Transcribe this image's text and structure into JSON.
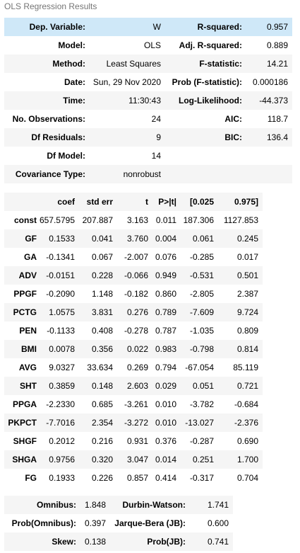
{
  "caption": "OLS Regression Results",
  "summary": [
    [
      "Dep. Variable:",
      "W",
      "R-squared:",
      "0.957"
    ],
    [
      "Model:",
      "OLS",
      "Adj. R-squared:",
      "0.889"
    ],
    [
      "Method:",
      "Least Squares",
      "F-statistic:",
      "14.21"
    ],
    [
      "Date:",
      "Sun, 29 Nov 2020",
      "Prob (F-statistic):",
      "0.000186"
    ],
    [
      "Time:",
      "11:30:43",
      "Log-Likelihood:",
      "-44.373"
    ],
    [
      "No. Observations:",
      "24",
      "AIC:",
      "118.7"
    ],
    [
      "Df Residuals:",
      "9",
      "BIC:",
      "136.4"
    ],
    [
      "Df Model:",
      "14",
      "",
      ""
    ],
    [
      "Covariance Type:",
      "nonrobust",
      "",
      ""
    ]
  ],
  "coef_headers": [
    "",
    "coef",
    "std err",
    "t",
    "P>|t|",
    "[0.025",
    "0.975]"
  ],
  "coef_rows": [
    [
      "const",
      "657.5795",
      "207.887",
      "3.163",
      "0.011",
      "187.306",
      "1127.853"
    ],
    [
      "GF",
      "0.1533",
      "0.041",
      "3.760",
      "0.004",
      "0.061",
      "0.245"
    ],
    [
      "GA",
      "-0.1341",
      "0.067",
      "-2.007",
      "0.076",
      "-0.285",
      "0.017"
    ],
    [
      "ADV",
      "-0.0151",
      "0.228",
      "-0.066",
      "0.949",
      "-0.531",
      "0.501"
    ],
    [
      "PPGF",
      "-0.2090",
      "1.148",
      "-0.182",
      "0.860",
      "-2.805",
      "2.387"
    ],
    [
      "PCTG",
      "1.0575",
      "3.831",
      "0.276",
      "0.789",
      "-7.609",
      "9.724"
    ],
    [
      "PEN",
      "-0.1133",
      "0.408",
      "-0.278",
      "0.787",
      "-1.035",
      "0.809"
    ],
    [
      "BMI",
      "0.0078",
      "0.356",
      "0.022",
      "0.983",
      "-0.798",
      "0.814"
    ],
    [
      "AVG",
      "9.0327",
      "33.634",
      "0.269",
      "0.794",
      "-67.054",
      "85.119"
    ],
    [
      "SHT",
      "0.3859",
      "0.148",
      "2.603",
      "0.029",
      "0.051",
      "0.721"
    ],
    [
      "PPGA",
      "-2.2330",
      "0.685",
      "-3.261",
      "0.010",
      "-3.782",
      "-0.684"
    ],
    [
      "PKPCT",
      "-7.7016",
      "2.354",
      "-3.272",
      "0.010",
      "-13.027",
      "-2.376"
    ],
    [
      "SHGF",
      "0.2012",
      "0.216",
      "0.931",
      "0.376",
      "-0.287",
      "0.690"
    ],
    [
      "SHGA",
      "0.9756",
      "0.320",
      "3.047",
      "0.014",
      "0.251",
      "1.700"
    ],
    [
      "FG",
      "0.1933",
      "0.226",
      "0.857",
      "0.414",
      "-0.317",
      "0.704"
    ]
  ],
  "diagnostics": [
    [
      "Omnibus:",
      "1.848",
      "Durbin-Watson:",
      "1.741"
    ],
    [
      "Prob(Omnibus):",
      "0.397",
      "Jarque-Bera (JB):",
      "0.600"
    ],
    [
      "Skew:",
      "0.138",
      "Prob(JB):",
      "0.741"
    ]
  ],
  "colors": {
    "highlight": "#cfe8f8",
    "stripe": "#f5f5f5",
    "caption": "#757575"
  }
}
